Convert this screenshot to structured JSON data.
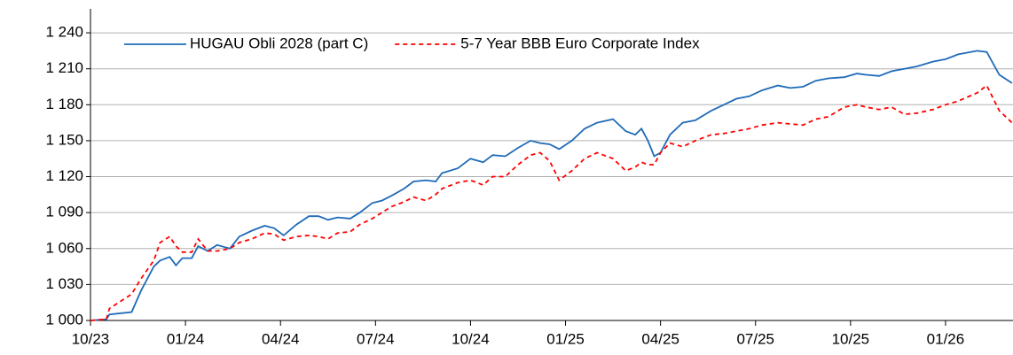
{
  "chart_data": {
    "type": "line",
    "x": [
      0,
      0.5,
      0.6,
      1.3,
      1.6,
      2.0,
      2.2,
      2.5,
      2.7,
      2.9,
      3.2,
      3.4,
      3.7,
      4.0,
      4.4,
      4.7,
      5.1,
      5.5,
      5.8,
      6.1,
      6.5,
      6.9,
      7.2,
      7.5,
      7.8,
      8.2,
      8.5,
      8.9,
      9.2,
      9.5,
      9.9,
      10.2,
      10.6,
      10.9,
      11.1,
      11.6,
      12.0,
      12.4,
      12.7,
      13.1,
      13.5,
      13.9,
      14.2,
      14.5,
      14.8,
      15.2,
      15.6,
      16.0,
      16.5,
      16.9,
      17.2,
      17.4,
      17.6,
      17.8,
      18.0,
      18.3,
      18.7,
      19.1,
      19.6,
      20.0,
      20.4,
      20.8,
      21.2,
      21.7,
      22.1,
      22.5,
      22.9,
      23.3,
      23.8,
      24.2,
      24.5,
      24.9,
      25.3,
      25.7,
      26.1,
      26.6,
      27.0,
      27.4,
      28.0,
      28.3,
      28.7,
      29.1
    ],
    "series": [
      {
        "name": "HUGAU Obli 2028 (part C)",
        "color": "#1f6bb8",
        "dash": false,
        "values": [
          1000,
          1001,
          1005,
          1007,
          1025,
          1045,
          1050,
          1053,
          1046,
          1052,
          1052,
          1062,
          1058,
          1063,
          1060,
          1070,
          1075,
          1079,
          1077,
          1071,
          1080,
          1087,
          1087,
          1084,
          1086,
          1085,
          1090,
          1098,
          1100,
          1104,
          1110,
          1116,
          1117,
          1116,
          1123,
          1127,
          1135,
          1132,
          1138,
          1137,
          1144,
          1150,
          1148,
          1147,
          1143,
          1150,
          1160,
          1165,
          1168,
          1158,
          1155,
          1160,
          1150,
          1137,
          1140,
          1155,
          1165,
          1167,
          1175,
          1180,
          1185,
          1187,
          1192,
          1196,
          1194,
          1195,
          1200,
          1202,
          1203,
          1206,
          1205,
          1204,
          1208,
          1210,
          1212,
          1216,
          1218,
          1222,
          1225,
          1224,
          1205,
          1198
        ]
      },
      {
        "name": "5-7 Year BBB Euro Corporate Index",
        "color": "#ff0000",
        "dash": true,
        "values": [
          1000,
          1001,
          1010,
          1022,
          1035,
          1050,
          1065,
          1070,
          1062,
          1057,
          1057,
          1068,
          1058,
          1058,
          1060,
          1065,
          1068,
          1073,
          1072,
          1067,
          1070,
          1071,
          1070,
          1068,
          1073,
          1074,
          1080,
          1085,
          1090,
          1095,
          1099,
          1103,
          1100,
          1105,
          1110,
          1115,
          1117,
          1113,
          1120,
          1120,
          1130,
          1138,
          1140,
          1133,
          1117,
          1125,
          1135,
          1140,
          1135,
          1125,
          1128,
          1132,
          1130,
          1130,
          1140,
          1148,
          1145,
          1150,
          1155,
          1156,
          1158,
          1160,
          1163,
          1165,
          1164,
          1163,
          1168,
          1170,
          1178,
          1180,
          1178,
          1176,
          1178,
          1172,
          1173,
          1176,
          1180,
          1183,
          1190,
          1196,
          1175,
          1165
        ]
      }
    ],
    "xlim": [
      0,
      29.13
    ],
    "xticks": [
      {
        "value": 0,
        "label": "10/23"
      },
      {
        "value": 3,
        "label": "01/24"
      },
      {
        "value": 6,
        "label": "04/24"
      },
      {
        "value": 9,
        "label": "07/24"
      },
      {
        "value": 12,
        "label": "10/24"
      },
      {
        "value": 15,
        "label": "01/25"
      },
      {
        "value": 18,
        "label": "04/25"
      },
      {
        "value": 21,
        "label": "07/25"
      },
      {
        "value": 24,
        "label": "10/25"
      },
      {
        "value": 27,
        "label": "01/26"
      }
    ],
    "ylim": [
      1000,
      1260
    ],
    "yticks": [
      {
        "value": 1000,
        "label": "1 000"
      },
      {
        "value": 1030,
        "label": "1 030"
      },
      {
        "value": 1060,
        "label": "1 060"
      },
      {
        "value": 1090,
        "label": "1 090"
      },
      {
        "value": 1120,
        "label": "1 120"
      },
      {
        "value": 1150,
        "label": "1 150"
      },
      {
        "value": 1180,
        "label": "1 180"
      },
      {
        "value": 1210,
        "label": "1 210"
      },
      {
        "value": 1240,
        "label": "1 240"
      }
    ],
    "grid": true,
    "legend": "top-left"
  }
}
